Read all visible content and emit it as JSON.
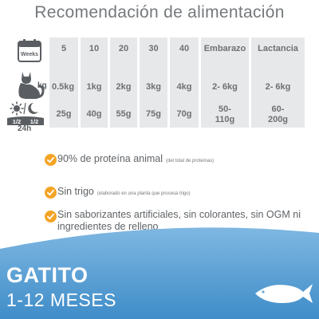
{
  "title": "Recomendación de alimentación",
  "icons": {
    "calendar_label": "Weeks",
    "weight_unit": "kg",
    "daily_label": "24h",
    "fraction_left": "1/2",
    "fraction_right": "1/2"
  },
  "table": {
    "columns": [
      {
        "head": "5",
        "kg": "0.5kg",
        "g": "25g"
      },
      {
        "head": "10",
        "kg": "1kg",
        "g": "40g"
      },
      {
        "head": "20",
        "kg": "2kg",
        "g": "55g"
      },
      {
        "head": "30",
        "kg": "3kg",
        "g": "75g"
      },
      {
        "head": "40",
        "kg": "4kg",
        "g": "70g"
      },
      {
        "head": "Embarazo",
        "kg": "2- 6kg",
        "g": "50-\n110g"
      },
      {
        "head": "Lactancia",
        "kg": "2- 6kg",
        "g": "60-\n200g"
      }
    ]
  },
  "features": [
    {
      "text": "90% de proteína animal",
      "note": "(del total de proteínas)"
    },
    {
      "text": "Sin trigo",
      "note": "(elaborado en una planta que procesa trigo)"
    },
    {
      "text": "Sin saborizantes artificiales, sin colorantes, sin OGM ni ingredientes de relleno",
      "note": ""
    }
  ],
  "banner": {
    "line1": "GATITO",
    "line2": "1-12 MESES"
  },
  "colors": {
    "accent_orange": "#f4a425",
    "banner_blue_dark": "#3f8dc9",
    "banner_blue_light": "#7fb7e2",
    "table_gray": "#e7e8e9",
    "text_gray": "#6d7174"
  }
}
